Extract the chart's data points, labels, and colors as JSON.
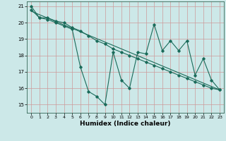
{
  "title": "",
  "xlabel": "Humidex (Indice chaleur)",
  "ylabel": "",
  "bg_color": "#cce8e8",
  "grid_color": "#cc9999",
  "line_color": "#1a6b5a",
  "xlim": [
    -0.5,
    23.5
  ],
  "ylim": [
    14.5,
    21.3
  ],
  "yticks": [
    15,
    16,
    17,
    18,
    19,
    20,
    21
  ],
  "xticks": [
    0,
    1,
    2,
    3,
    4,
    5,
    6,
    7,
    8,
    9,
    10,
    11,
    12,
    13,
    14,
    15,
    16,
    17,
    18,
    19,
    20,
    21,
    22,
    23
  ],
  "series1_x": [
    0,
    1,
    2,
    3,
    4,
    5,
    6,
    7,
    8,
    9,
    10,
    11,
    12,
    13,
    14,
    15,
    16,
    17,
    18,
    19,
    20,
    21,
    22,
    23
  ],
  "series1_y": [
    21.0,
    20.3,
    20.2,
    20.0,
    19.8,
    19.6,
    17.3,
    15.8,
    15.5,
    15.0,
    18.2,
    16.5,
    16.0,
    18.2,
    18.1,
    19.9,
    18.3,
    18.9,
    18.3,
    18.9,
    16.8,
    17.8,
    16.5,
    15.9
  ],
  "series2_x": [
    0,
    1,
    2,
    3,
    4,
    5,
    6,
    7,
    8,
    9,
    10,
    11,
    12,
    13,
    14,
    15,
    16,
    17,
    18,
    19,
    20,
    21,
    22,
    23
  ],
  "series2_y": [
    20.8,
    20.3,
    20.3,
    20.1,
    20.0,
    19.7,
    19.5,
    19.2,
    18.9,
    18.7,
    18.4,
    18.2,
    18.0,
    17.8,
    17.6,
    17.4,
    17.2,
    17.0,
    16.8,
    16.6,
    16.4,
    16.2,
    16.0,
    15.9
  ],
  "trend_x": [
    0,
    23
  ],
  "trend_y": [
    20.7,
    15.9
  ]
}
